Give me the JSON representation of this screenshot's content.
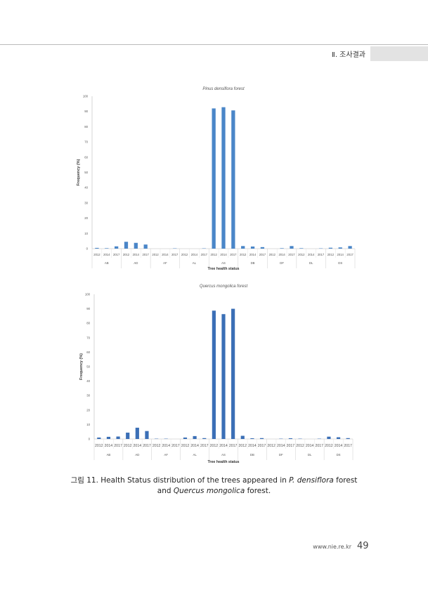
{
  "header": {
    "section": "Ⅱ. 조사결과"
  },
  "chart_data": [
    {
      "type": "bar",
      "title": "Pinus densiflora forest",
      "xlabel": "Tree health status",
      "ylabel": "Frequency (%)",
      "ylim": [
        0,
        100
      ],
      "yticks": [
        0,
        10,
        20,
        30,
        40,
        50,
        60,
        70,
        80,
        90,
        100
      ],
      "groups": [
        "AB",
        "AD",
        "AF",
        "AL",
        "AS",
        "DB",
        "DF",
        "DL",
        "DS"
      ],
      "years": [
        "2012",
        "2014",
        "2017"
      ],
      "values": [
        [
          0.5,
          0.3,
          1.5
        ],
        [
          4.5,
          3.8,
          2.7
        ],
        [
          0,
          0,
          0.2
        ],
        [
          0,
          0,
          0.2
        ],
        [
          92,
          92.8,
          90.7
        ],
        [
          1.7,
          1.4,
          1.0
        ],
        [
          0,
          0.3,
          1.7
        ],
        [
          0.3,
          0,
          0.2
        ],
        [
          0.6,
          0.8,
          1.7
        ]
      ],
      "color": "#4a86c8"
    },
    {
      "type": "bar",
      "title": "Quercus mongolica forest",
      "xlabel": "Tree health status",
      "ylabel": "Frequency (%)",
      "ylim": [
        0,
        100
      ],
      "yticks": [
        0,
        10,
        20,
        30,
        40,
        50,
        60,
        70,
        80,
        90,
        100
      ],
      "groups": [
        "AB",
        "AD",
        "AF",
        "AL",
        "AS",
        "DB",
        "DF",
        "DL",
        "DS"
      ],
      "years": [
        "2012",
        "2014",
        "2017"
      ],
      "values": [
        [
          1,
          1.5,
          1.7
        ],
        [
          4.4,
          7.8,
          5.5
        ],
        [
          0.2,
          0.2,
          0
        ],
        [
          1,
          2,
          0.6
        ],
        [
          88.7,
          86.3,
          90
        ],
        [
          2.2,
          0.5,
          0.6
        ],
        [
          0,
          0.2,
          0.5
        ],
        [
          0.2,
          0,
          0.2
        ],
        [
          1.6,
          1.2,
          0.6
        ]
      ],
      "color": "#3b6fb6"
    }
  ],
  "caption": {
    "prefix": "그림 11. Health Status distribution of the trees appeared in ",
    "species1": "P. densiflora",
    "mid": " forest",
    "line2_pre": "and ",
    "species2": "Quercus mongolica",
    "line2_post": " forest."
  },
  "footer": {
    "url": "www.nie.re.kr",
    "page": "49"
  }
}
